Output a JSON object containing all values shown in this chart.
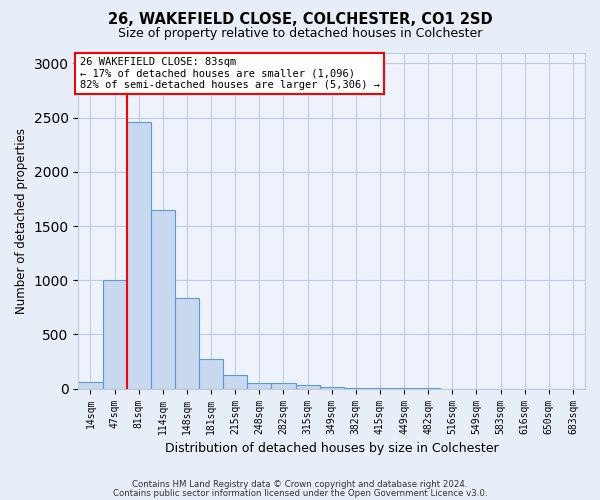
{
  "title1": "26, WAKEFIELD CLOSE, COLCHESTER, CO1 2SD",
  "title2": "Size of property relative to detached houses in Colchester",
  "xlabel": "Distribution of detached houses by size in Colchester",
  "ylabel": "Number of detached properties",
  "bin_labels": [
    "14sqm",
    "47sqm",
    "81sqm",
    "114sqm",
    "148sqm",
    "181sqm",
    "215sqm",
    "248sqm",
    "282sqm",
    "315sqm",
    "349sqm",
    "382sqm",
    "415sqm",
    "449sqm",
    "482sqm",
    "516sqm",
    "549sqm",
    "583sqm",
    "616sqm",
    "650sqm",
    "683sqm"
  ],
  "bar_values": [
    60,
    1000,
    2460,
    1650,
    840,
    270,
    130,
    55,
    50,
    35,
    20,
    10,
    5,
    3,
    2,
    1,
    1,
    1,
    1,
    1,
    1
  ],
  "bar_color": "#c8d8ef",
  "bar_edge_color": "#5b9bd5",
  "vline_x_index": 2,
  "vline_color": "red",
  "annotation_text": "26 WAKEFIELD CLOSE: 83sqm\n← 17% of detached houses are smaller (1,096)\n82% of semi-detached houses are larger (5,306) →",
  "annotation_box_color": "white",
  "annotation_box_edge": "red",
  "footer1": "Contains HM Land Registry data © Crown copyright and database right 2024.",
  "footer2": "Contains public sector information licensed under the Open Government Licence v3.0.",
  "ylim": [
    0,
    3100
  ],
  "background_color": "#e8eef8",
  "plot_bg_color": "#eef2fa",
  "grid_color": "#c0cce0"
}
